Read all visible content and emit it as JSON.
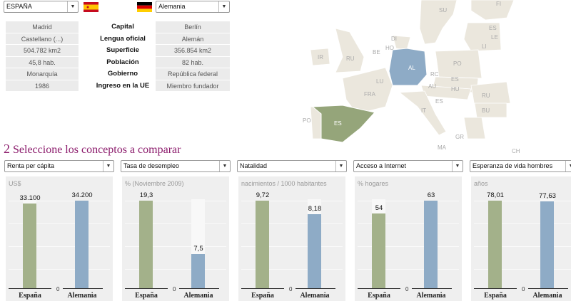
{
  "country1": {
    "select": "ESPAÑA",
    "flag": "spain-flag",
    "values": [
      "Madrid",
      "Castellano (...)",
      "504.782 km2",
      "45,8 hab.",
      "Monarquía",
      "1986"
    ]
  },
  "country2": {
    "select": "Alemania",
    "flag": "germany-flag",
    "values": [
      "Berlín",
      "Alemán",
      "356.854 km2",
      "82 hab.",
      "República federal",
      "Miembro fundador"
    ]
  },
  "labels": [
    "Capital",
    "Lengua oficial",
    "Superficie",
    "Población",
    "Gobierno",
    "Ingreso en la UE"
  ],
  "map": {
    "labels": [
      "SU",
      "FI",
      "ES",
      "LE",
      "LI",
      "DI",
      "HO",
      "BE",
      "IR",
      "RU",
      "AL",
      "PO",
      "RC",
      "ES",
      "AU",
      "HU",
      "LU",
      "FRA",
      "RU",
      "ES",
      "IT",
      "BU",
      "PO",
      "ES",
      "GR",
      "MA",
      "CH"
    ]
  },
  "section": {
    "number": "2",
    "title": "Seleccione los conceptos a comparar"
  },
  "colors": {
    "spain": "#a3b18a",
    "germany": "#8eabc6",
    "title": "#8b1a6b"
  },
  "chart_data": [
    {
      "type": "bar",
      "select": "Renta per cápita",
      "ylabel": "US$",
      "categories": [
        "España",
        "Alemania"
      ],
      "values": [
        33100,
        34200
      ],
      "labels": [
        "33.100",
        "34.200"
      ],
      "zero": "0"
    },
    {
      "type": "bar",
      "select": "Tasa de desempleo",
      "ylabel": "% (Noviembre 2009)",
      "categories": [
        "España",
        "Alemania"
      ],
      "values": [
        19.3,
        7.5
      ],
      "labels": [
        "19,3",
        "7,5"
      ],
      "zero": "0"
    },
    {
      "type": "bar",
      "select": "Natalidad",
      "ylabel": "nacimientos / 1000 habitantes",
      "categories": [
        "España",
        "Alemania"
      ],
      "values": [
        9.72,
        8.18
      ],
      "labels": [
        "9,72",
        "8,18"
      ],
      "zero": "0"
    },
    {
      "type": "bar",
      "select": "Acceso a Internet",
      "ylabel": "% hogares",
      "categories": [
        "España",
        "Alemania"
      ],
      "values": [
        54,
        63
      ],
      "labels": [
        "54",
        "63"
      ],
      "zero": "0"
    },
    {
      "type": "bar",
      "select": "Esperanza de vida hombres",
      "ylabel": "años",
      "categories": [
        "España",
        "Alemania"
      ],
      "values": [
        78.01,
        77.63
      ],
      "labels": [
        "78,01",
        "77,63"
      ],
      "zero": "0"
    }
  ]
}
